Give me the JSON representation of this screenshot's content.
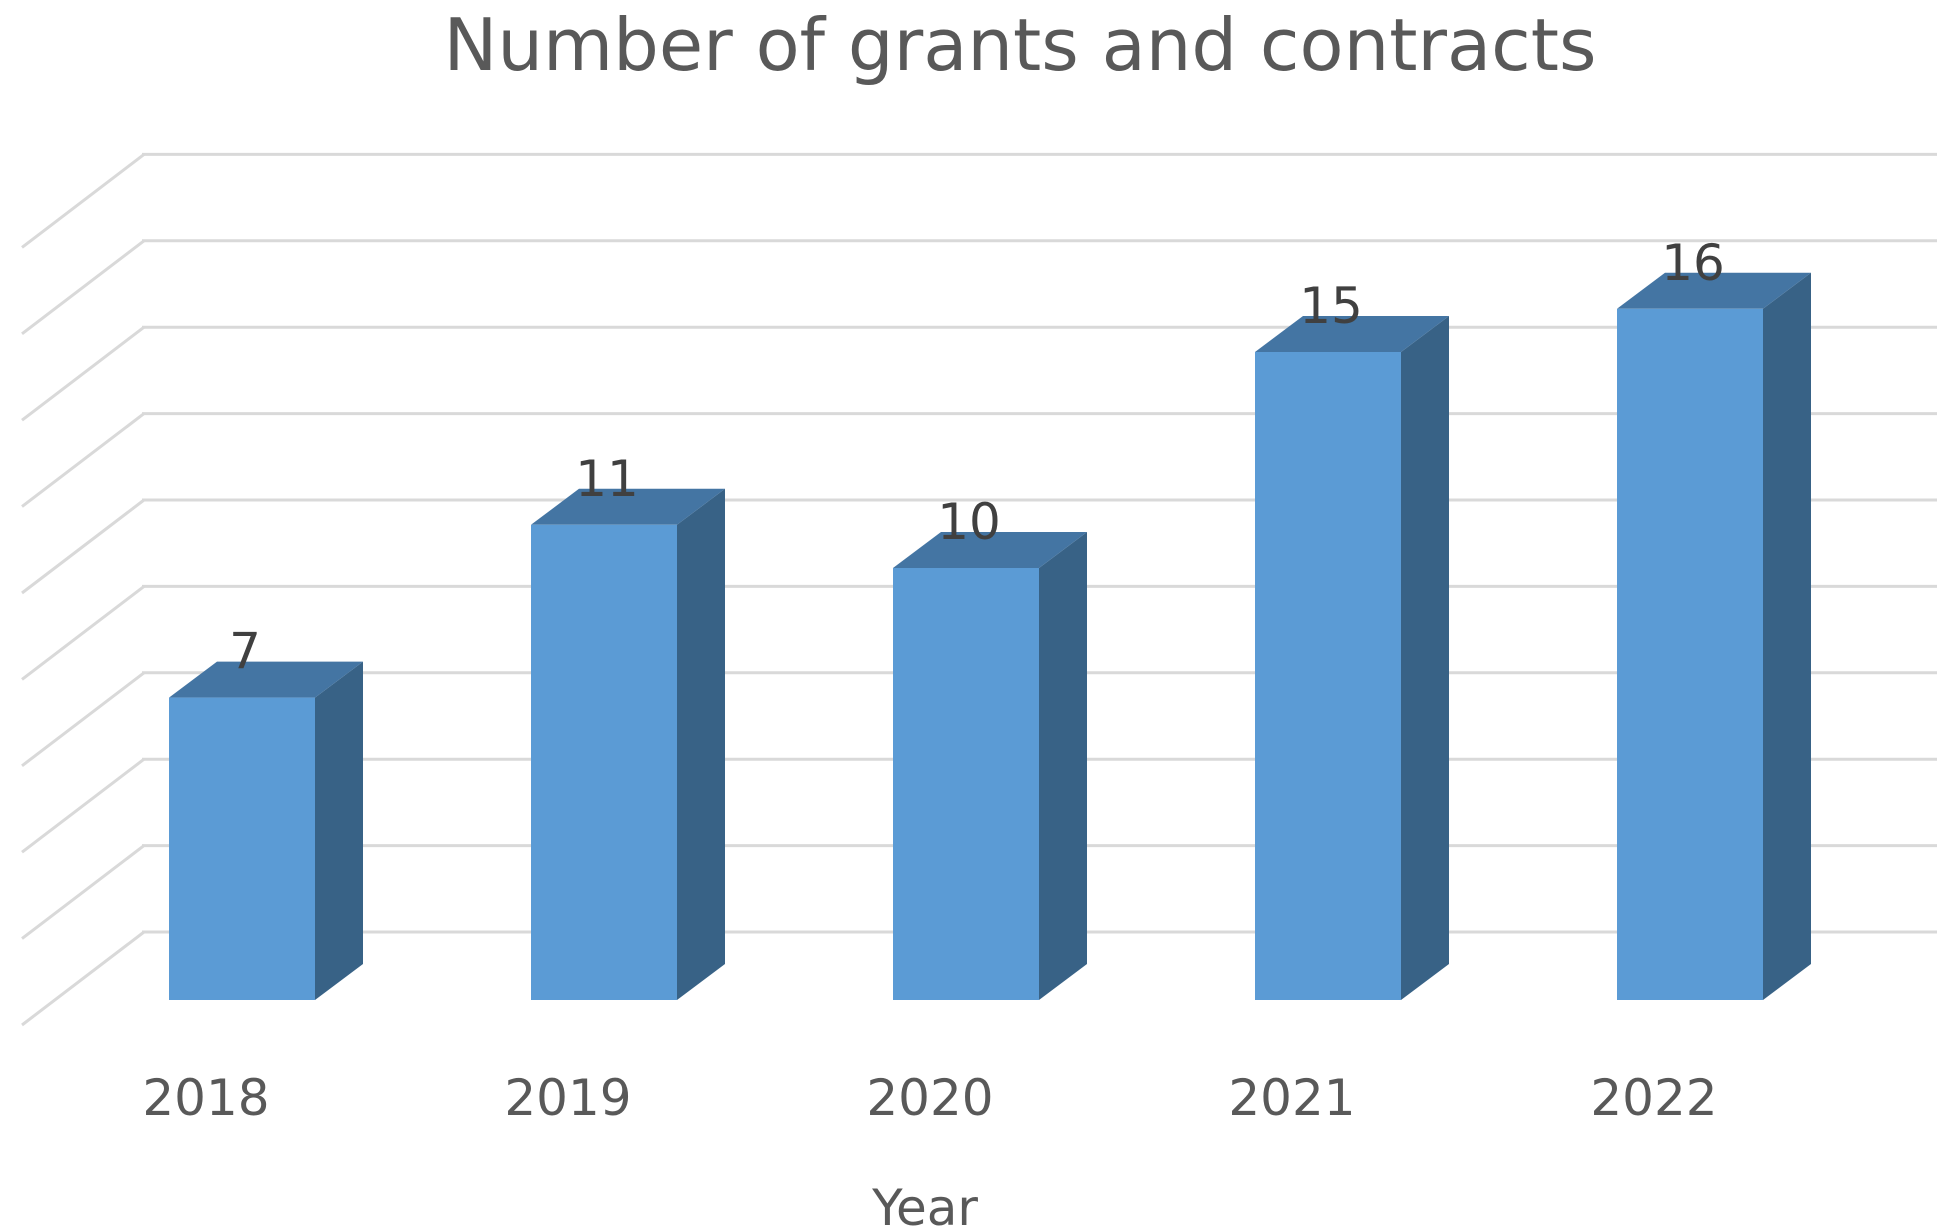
{
  "chart_data": {
    "type": "bar",
    "title": "Number of grants and contracts",
    "xlabel": "Year",
    "ylabel": "",
    "categories": [
      "2018",
      "2019",
      "2020",
      "2021",
      "2022"
    ],
    "values": [
      7,
      11,
      10,
      15,
      16
    ],
    "ylim": [
      0,
      18
    ],
    "grid": true,
    "legend": "none",
    "style": "3d-column",
    "colors": {
      "front": "#5B9BD5",
      "side": "#386286",
      "top": "#4475A3",
      "grid": "#D9D9D9",
      "text": "#595959"
    }
  }
}
